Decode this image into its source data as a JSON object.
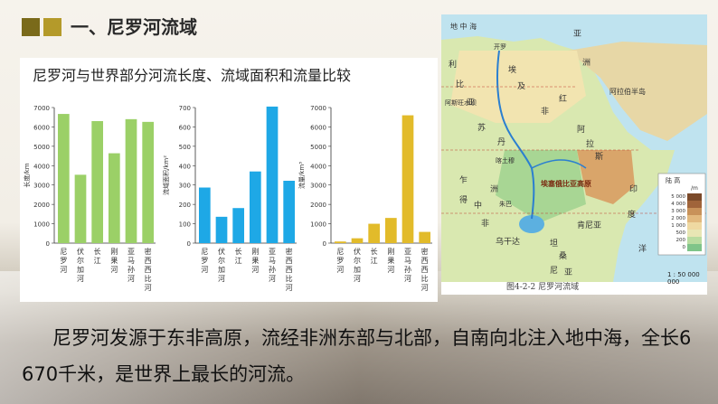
{
  "header": {
    "title": "一、尼罗河流域"
  },
  "chart_title": "尼罗河与世界部分河流长度、流域面积和流量比较",
  "chart_data": [
    {
      "type": "bar",
      "ylabel": "长度/km",
      "ylim": [
        0,
        7000
      ],
      "yticks": [
        0,
        1000,
        2000,
        3000,
        4000,
        5000,
        6000,
        7000
      ],
      "categories": [
        "尼罗河",
        "伏尔加河",
        "长江",
        "刚果河",
        "亚马孙河",
        "密西西比河"
      ],
      "values": [
        6670,
        3530,
        6300,
        4640,
        6400,
        6260
      ],
      "color": "#9bd067"
    },
    {
      "type": "bar",
      "ylabel": "流域面积/km²",
      "ylim": [
        0,
        700
      ],
      "yticks": [
        0,
        100,
        200,
        300,
        400,
        500,
        600,
        700
      ],
      "categories": [
        "尼罗河",
        "伏尔加河",
        "长江",
        "刚果河",
        "亚马孙河",
        "密西西比河"
      ],
      "values": [
        287,
        136,
        181,
        370,
        705,
        322
      ],
      "color": "#1ea8e6"
    },
    {
      "type": "bar",
      "ylabel": "流量/km³",
      "ylim": [
        0,
        7000
      ],
      "yticks": [
        0,
        1000,
        2000,
        3000,
        4000,
        5000,
        6000,
        7000
      ],
      "categories": [
        "尼罗河",
        "伏尔加河",
        "长江",
        "刚果河",
        "亚马孙河",
        "密西西比河"
      ],
      "values": [
        84,
        250,
        1000,
        1300,
        6600,
        580
      ],
      "color": "#e2bb2a"
    }
  ],
  "map": {
    "labels": [
      "地 中 海",
      "开罗",
      "利",
      "比",
      "亚",
      "埃",
      "及",
      "亚",
      "洲",
      "阿拉伯半岛",
      "非",
      "红",
      "苏",
      "丹",
      "喀土穆",
      "阿",
      "拉",
      "斯",
      "乍",
      "得",
      "中",
      "非",
      "洲",
      "朱巴",
      "乌干达",
      "埃塞俄比亚高原",
      "肯尼亚",
      "坦",
      "桑",
      "尼",
      "亚",
      "印",
      "度",
      "洋",
      "阿斯旺水坝"
    ],
    "caption": "图4-2-2  尼罗河流域",
    "scale": "1 : 50 000 000",
    "legend": {
      "title": "陆 高",
      "unit": "/m",
      "levels": [
        "5 000",
        "4 000",
        "3 000",
        "2 000",
        "1 000",
        "500",
        "200",
        "0"
      ],
      "colors": [
        "#7b4a2a",
        "#a0643a",
        "#c8925a",
        "#e2b97e",
        "#efd9a2",
        "#e8e6b4",
        "#b9dca0",
        "#7fc489"
      ]
    }
  },
  "body": {
    "text": "尼罗河发源于东非高原，流经非洲东部与北部，自南向北注入地中海，全长6 670千米，是世界上最长的河流。"
  }
}
